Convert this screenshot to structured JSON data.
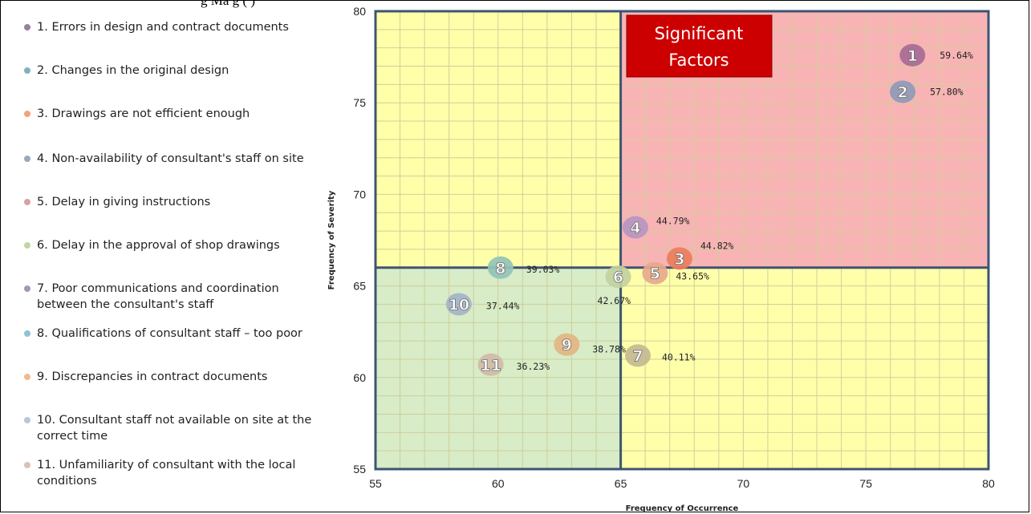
{
  "page": {
    "cutoff_title": "g     Ma       g (    )"
  },
  "quadrant_colors": {
    "top_left": "#ffffaa",
    "top_right": "#f8b4b4",
    "bottom_left": "#d7ecc7",
    "bottom_right": "#ffffaa",
    "grid_line": "#cfcf9a",
    "axis_line": "#3f5473",
    "significant_box": "#cc0000"
  },
  "significant_box": {
    "line1": "Significant",
    "line2": "Factors"
  },
  "legend": [
    {
      "label": "1. Errors in design and contract documents",
      "color": "#9a7fa3"
    },
    {
      "label": "2. Changes in the original design",
      "color": "#7fb2c0"
    },
    {
      "label": "3. Drawings are not efficient enough",
      "color": "#f1a37a"
    },
    {
      "label": "4. Non-availability of consultant's staff on site",
      "color": "#9aa7bf"
    },
    {
      "label": "5. Delay in giving instructions",
      "color": "#d6a2a2"
    },
    {
      "label": "6. Delay in the approval of shop drawings",
      "color": "#c2d5a4"
    },
    {
      "label": "7. Poor communications and coordination between the consultant's staff",
      "color": "#a597b4"
    },
    {
      "label": "8. Qualifications of consultant staff – too poor",
      "color": "#8fc3d4"
    },
    {
      "label": "9. Discrepancies in contract documents",
      "color": "#f5b792"
    },
    {
      "label": "10. Consultant staff not available on site at the correct time",
      "color": "#b9c6dc"
    },
    {
      "label": "11. Unfamiliarity of consultant with the local conditions",
      "color": "#dbc0b5"
    }
  ],
  "chart_data": {
    "type": "scatter",
    "xlabel": "Frequency of Occurrence",
    "ylabel": "Frequency of Severity",
    "xlim": [
      55,
      80
    ],
    "ylim": [
      55,
      80
    ],
    "xticks": [
      "55",
      "60",
      "65",
      "70",
      "75",
      "80"
    ],
    "yticks": [
      "55",
      "60",
      "65",
      "70",
      "75",
      "80"
    ],
    "x_split": 65,
    "y_split": 66,
    "grid": true,
    "points": [
      {
        "id": "1",
        "x": 76.9,
        "y": 77.6,
        "label": "59.64%",
        "color": "#a86a96"
      },
      {
        "id": "2",
        "x": 76.5,
        "y": 75.6,
        "label": "57.80%",
        "color": "#8f9ab8"
      },
      {
        "id": "3",
        "x": 67.4,
        "y": 66.5,
        "label": "44.82%",
        "color": "#ec7e5c"
      },
      {
        "id": "4",
        "x": 65.6,
        "y": 68.2,
        "label": "44.79%",
        "color": "#b696c2"
      },
      {
        "id": "5",
        "x": 66.4,
        "y": 65.7,
        "label": "43.65%",
        "color": "#e8a98c"
      },
      {
        "id": "6",
        "x": 64.9,
        "y": 65.5,
        "label": "42.67%",
        "color": "#c3d19f"
      },
      {
        "id": "7",
        "x": 65.7,
        "y": 61.2,
        "label": "40.11%",
        "color": "#c5b994"
      },
      {
        "id": "8",
        "x": 60.1,
        "y": 66.0,
        "label": "39.03%",
        "color": "#93c3b8"
      },
      {
        "id": "9",
        "x": 62.8,
        "y": 61.8,
        "label": "38.78%",
        "color": "#e3b583"
      },
      {
        "id": "10",
        "x": 58.4,
        "y": 64.0,
        "label": "37.44%",
        "color": "#a3b4c9"
      },
      {
        "id": "11",
        "x": 59.7,
        "y": 60.7,
        "label": "36.23%",
        "color": "#d0bba6"
      }
    ]
  }
}
